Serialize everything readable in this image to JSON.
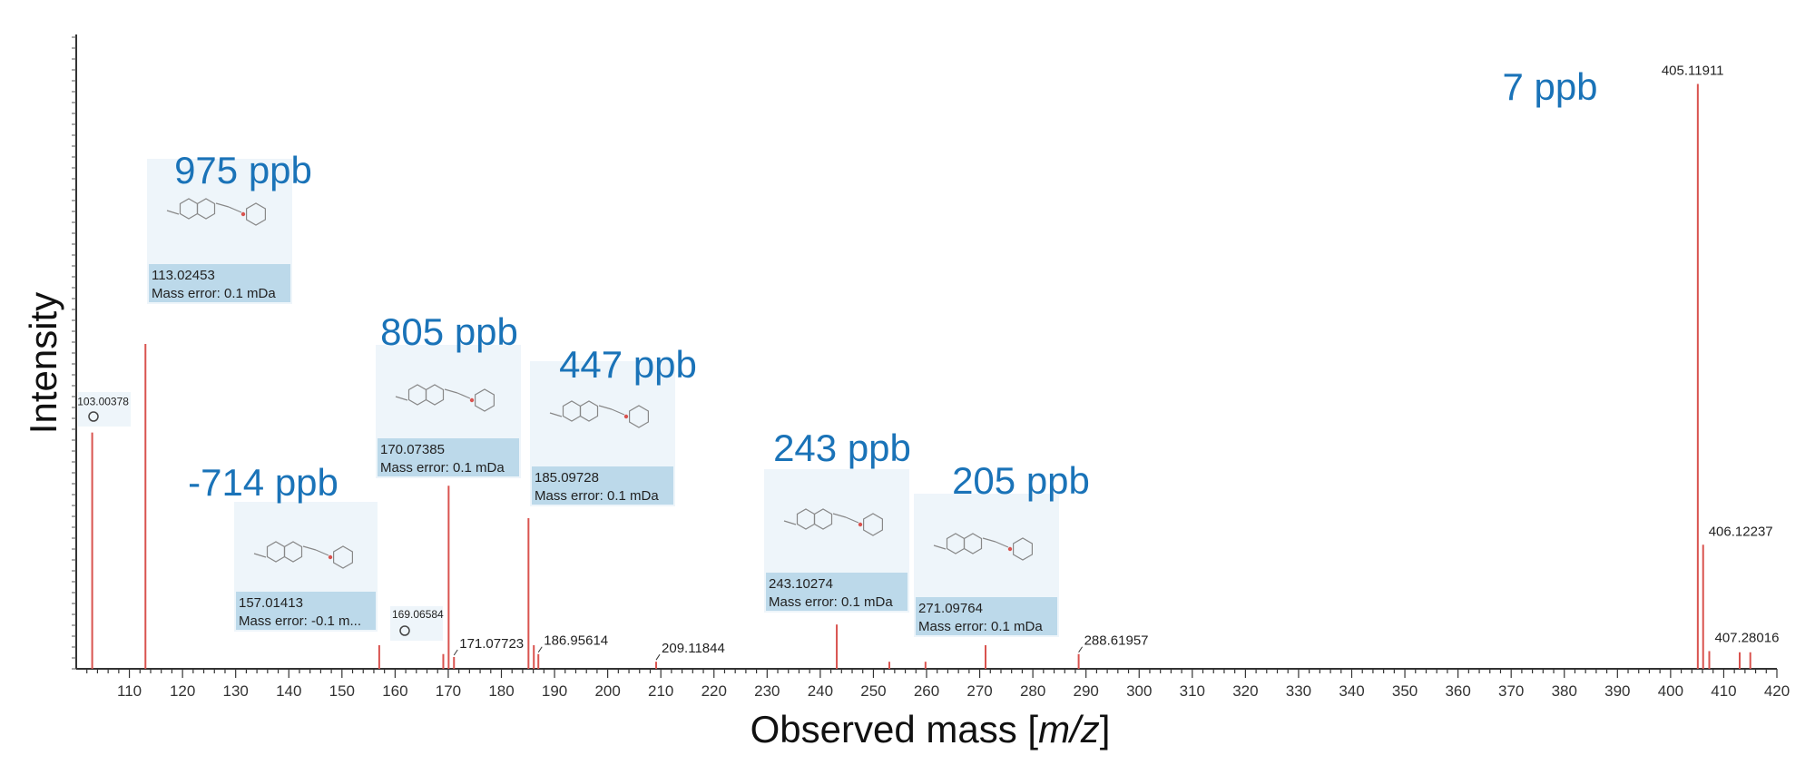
{
  "chart_data": {
    "type": "stick",
    "xlabel": "Observed mass [m/z]",
    "ylabel": "Intensity",
    "xlim": [
      100,
      420
    ],
    "xticks": [
      110,
      120,
      130,
      140,
      150,
      160,
      170,
      180,
      190,
      200,
      210,
      220,
      230,
      240,
      250,
      260,
      270,
      280,
      290,
      300,
      310,
      320,
      330,
      340,
      350,
      360,
      370,
      380,
      390,
      400,
      410,
      420
    ],
    "grid": false,
    "peaks": [
      {
        "mz": 103.00378,
        "rel": 0.4,
        "label": "103.00378"
      },
      {
        "mz": 113.02453,
        "rel": 0.55
      },
      {
        "mz": 157.01413,
        "rel": 0.04
      },
      {
        "mz": 169.06584,
        "rel": 0.025
      },
      {
        "mz": 170.07385,
        "rel": 0.31
      },
      {
        "mz": 171.07723,
        "rel": 0.02,
        "label": "171.07723"
      },
      {
        "mz": 185.09728,
        "rel": 0.255
      },
      {
        "mz": 186.1,
        "rel": 0.04
      },
      {
        "mz": 186.95614,
        "rel": 0.025,
        "label": "186.95614"
      },
      {
        "mz": 209.11844,
        "rel": 0.012,
        "label": "209.11844"
      },
      {
        "mz": 243.10274,
        "rel": 0.075
      },
      {
        "mz": 253.0,
        "rel": 0.012
      },
      {
        "mz": 259.8,
        "rel": 0.012
      },
      {
        "mz": 271.09764,
        "rel": 0.04
      },
      {
        "mz": 288.61957,
        "rel": 0.025,
        "label": "288.61957"
      },
      {
        "mz": 405.11911,
        "rel": 0.99,
        "label": "405.11911"
      },
      {
        "mz": 406.12237,
        "rel": 0.21,
        "label": "406.12237"
      },
      {
        "mz": 407.28016,
        "rel": 0.03,
        "label": "407.28016"
      },
      {
        "mz": 413.0,
        "rel": 0.028
      },
      {
        "mz": 415.0,
        "rel": 0.028
      }
    ],
    "annotations": [
      {
        "ppb": "975 ppb",
        "mass": "113.02453",
        "error": "Mass error: 0.1 mDa"
      },
      {
        "ppb": "-714 ppb",
        "mass": "157.01413",
        "error": "Mass error: -0.1 m..."
      },
      {
        "ppb": "805 ppb",
        "mass": "170.07385",
        "error": "Mass error: 0.1 mDa"
      },
      {
        "ppb": "447 ppb",
        "mass": "185.09728",
        "error": "Mass error: 0.1 mDa"
      },
      {
        "ppb": "243 ppb",
        "mass": "243.10274",
        "error": "Mass error: 0.1 mDa"
      },
      {
        "ppb": "205 ppb",
        "mass": "271.09764",
        "error": "Mass error: 0.1 mDa"
      },
      {
        "ppb": "7 ppb",
        "mass": "",
        "error": ""
      }
    ],
    "small_label": "169.06584",
    "colors": {
      "peak": "#d9534f",
      "ppb": "#1a73b8",
      "card_bg": "#eef5fa",
      "card_label_bg": "#bcd9ea"
    }
  }
}
